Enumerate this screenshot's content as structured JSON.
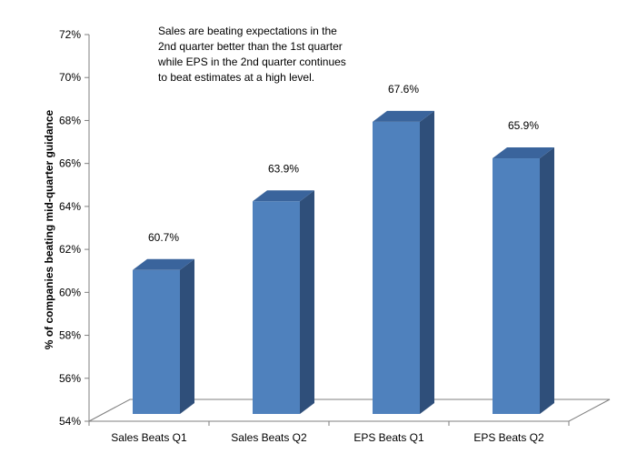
{
  "chart_data": {
    "type": "bar",
    "categories": [
      "Sales Beats Q1",
      "Sales Beats Q2",
      "EPS Beats Q1",
      "EPS Beats Q2"
    ],
    "values": [
      60.7,
      63.9,
      67.6,
      65.9
    ],
    "data_labels": [
      "60.7%",
      "63.9%",
      "67.6%",
      "65.9%"
    ],
    "title": "",
    "xlabel": "",
    "ylabel": "% of companies beating mid-quarter guidance",
    "ylim": [
      54,
      72
    ],
    "yticks": [
      54,
      56,
      58,
      60,
      62,
      64,
      66,
      68,
      70,
      72
    ],
    "ytick_labels": [
      "54%",
      "56%",
      "58%",
      "60%",
      "62%",
      "64%",
      "66%",
      "68%",
      "70%",
      "72%"
    ],
    "annotation": "Sales are beating expectations in the 2nd quarter better than the 1st quarter while EPS in the 2nd quarter continues to beat estimates at a high level.",
    "grid": false,
    "legend": "none",
    "style": "3d-column",
    "colors": {
      "bar_front": "#4F81BD",
      "bar_side": "#2F4F7A",
      "bar_top": "#3A649C",
      "axis": "#7F7F7F"
    }
  }
}
